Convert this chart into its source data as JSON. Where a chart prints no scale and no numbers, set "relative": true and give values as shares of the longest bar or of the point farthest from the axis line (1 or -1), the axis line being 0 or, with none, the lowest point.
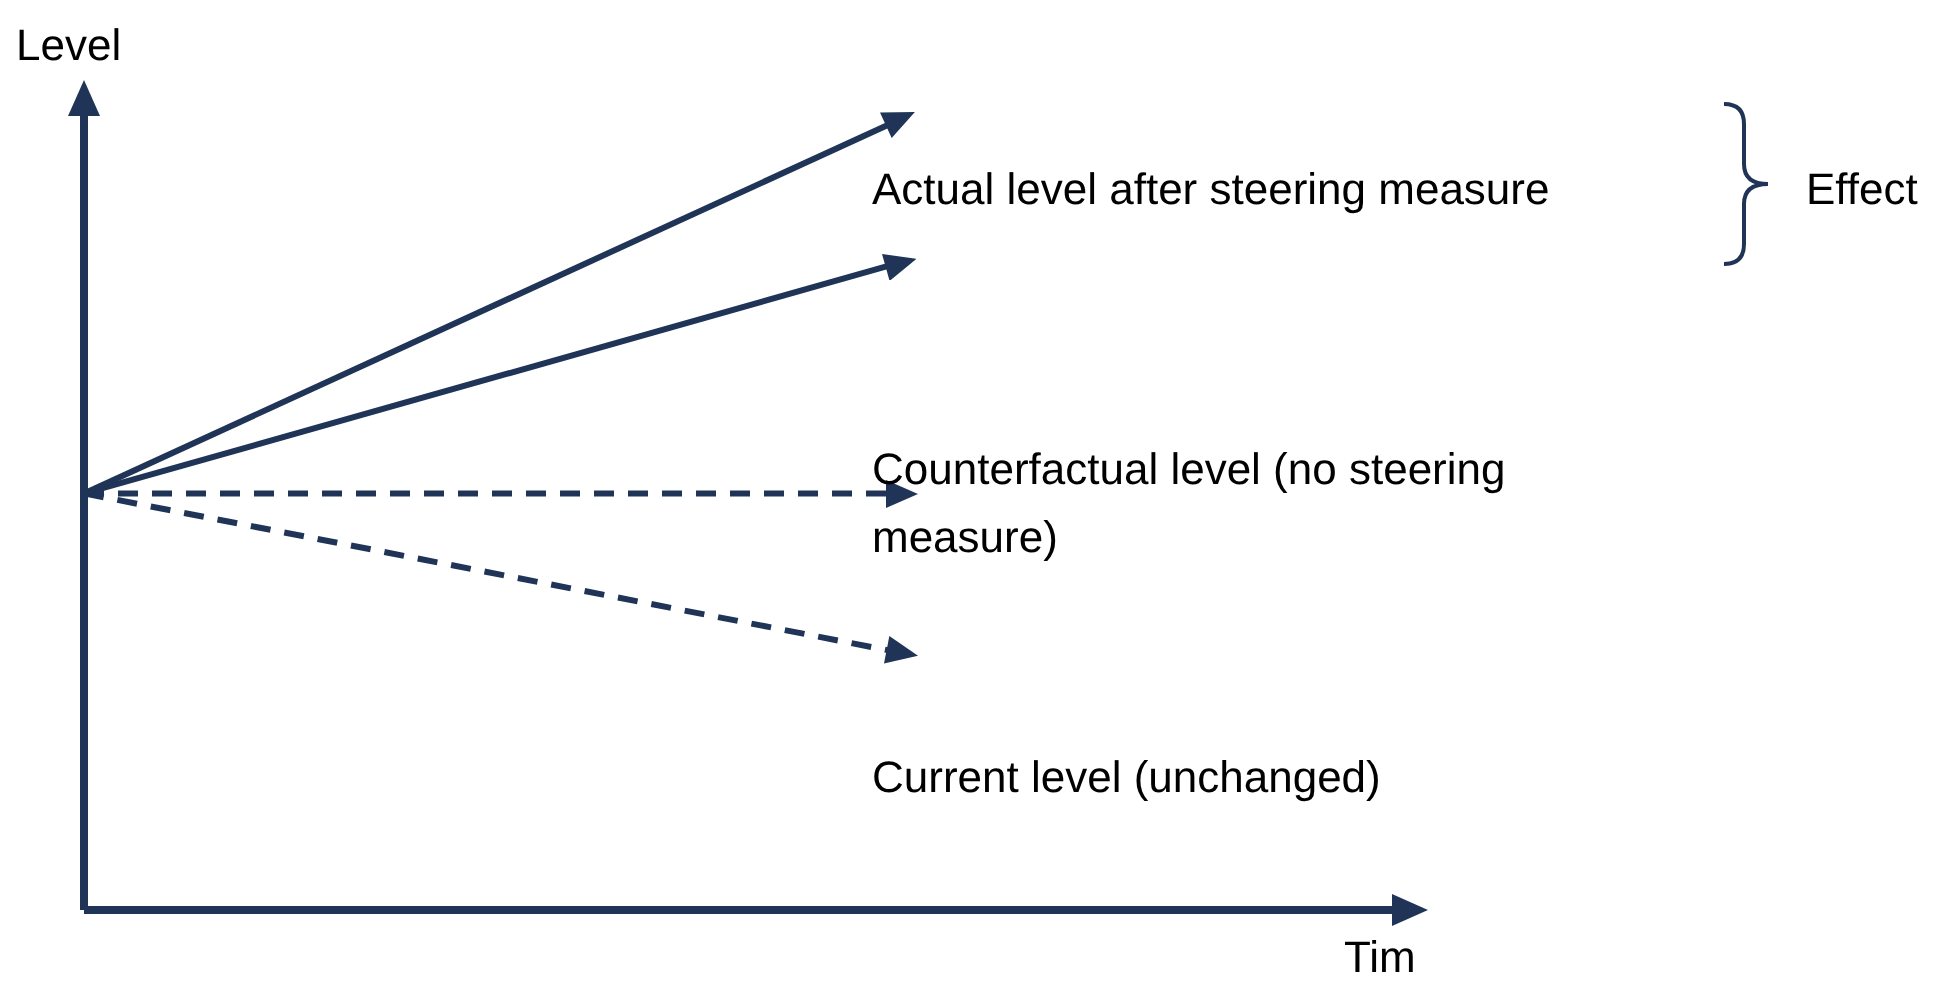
{
  "chart_data": {
    "type": "line",
    "relative": true,
    "xlabel": "Tim",
    "ylabel": "Level",
    "categories": [
      null,
      null
    ],
    "series": [
      {
        "color": "#1f3456",
        "values": [
          0.53,
          1
        ],
        "line_style": "solid"
      },
      {
        "color": "#1f3456",
        "values": [
          0.53,
          0.82
        ],
        "line_style": "solid"
      },
      {
        "color": "#1f3456",
        "values": [
          0.53,
          0.53
        ],
        "line_style": "dashed"
      },
      {
        "color": "#1f3456",
        "values": [
          0.53,
          0.33
        ],
        "line_style": "dashed"
      }
    ],
    "annotations": [
      "Actual level after steering measure",
      "Effect",
      "Counterfactual level (no steering measure)",
      "Current level (unchanged)"
    ]
  }
}
